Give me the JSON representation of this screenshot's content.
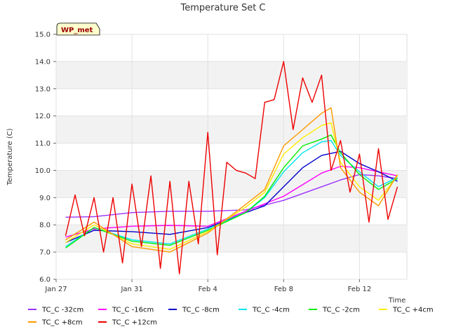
{
  "chart_data": {
    "type": "line",
    "title": "Temperature Set C",
    "xlabel": "Time",
    "ylabel": "Temperature (C)",
    "annotation": "WP_met",
    "xlim": [
      "2024-01-27",
      "2024-02-14T12:00"
    ],
    "ylim": [
      6.0,
      15.0
    ],
    "yticks": [
      "6.0",
      "7.0",
      "8.0",
      "9.0",
      "10.0",
      "11.0",
      "12.0",
      "13.0",
      "14.0",
      "15.0"
    ],
    "xticks": [
      {
        "label": "Jan 27",
        "x": "2024-01-27"
      },
      {
        "label": "Jan 31",
        "x": "2024-01-31"
      },
      {
        "label": "Feb 4",
        "x": "2024-02-04"
      },
      {
        "label": "Feb 8",
        "x": "2024-02-08"
      },
      {
        "label": "Feb 12",
        "x": "2024-02-12"
      }
    ],
    "grid": true,
    "legend_position": "bottom",
    "series": [
      {
        "name": "TC_C -32cm",
        "color": "#9b30ff",
        "x": [
          "2024-01-27T12:00",
          "2024-01-29",
          "2024-01-31",
          "2024-02-02",
          "2024-02-04",
          "2024-02-06",
          "2024-02-08",
          "2024-02-10",
          "2024-02-11",
          "2024-02-12",
          "2024-02-13",
          "2024-02-14"
        ],
        "y": [
          8.28,
          8.3,
          8.45,
          8.5,
          8.5,
          8.55,
          8.9,
          9.4,
          9.65,
          9.85,
          9.8,
          9.7
        ]
      },
      {
        "name": "TC_C -16cm",
        "color": "#ff00ff",
        "x": [
          "2024-01-27T12:00",
          "2024-01-29",
          "2024-01-31",
          "2024-02-02",
          "2024-02-04",
          "2024-02-06",
          "2024-02-08",
          "2024-02-10",
          "2024-02-11",
          "2024-02-12",
          "2024-02-13",
          "2024-02-14"
        ],
        "y": [
          7.55,
          7.85,
          7.95,
          7.98,
          7.95,
          8.5,
          9.05,
          9.9,
          10.15,
          10.1,
          9.95,
          9.8
        ]
      },
      {
        "name": "TC_C -8cm",
        "color": "#0000cc",
        "x": [
          "2024-01-27T12:00",
          "2024-01-29",
          "2024-01-31",
          "2024-02-02",
          "2024-02-04",
          "2024-02-06",
          "2024-02-07",
          "2024-02-08",
          "2024-02-09",
          "2024-02-10",
          "2024-02-11",
          "2024-02-12",
          "2024-02-13",
          "2024-02-14"
        ],
        "y": [
          7.35,
          7.8,
          7.75,
          7.65,
          7.9,
          8.45,
          8.7,
          9.4,
          10.1,
          10.55,
          10.7,
          10.25,
          9.95,
          9.6
        ]
      },
      {
        "name": "TC_C -4cm",
        "color": "#00e5ee",
        "x": [
          "2024-01-27T12:00",
          "2024-01-29",
          "2024-01-31",
          "2024-02-02",
          "2024-02-04",
          "2024-02-06",
          "2024-02-07",
          "2024-02-08",
          "2024-02-09",
          "2024-02-10",
          "2024-02-10T12:00",
          "2024-02-11",
          "2024-02-12",
          "2024-02-13",
          "2024-02-14"
        ],
        "y": [
          7.2,
          7.9,
          7.45,
          7.3,
          7.85,
          8.45,
          9.0,
          9.95,
          10.65,
          11.05,
          11.1,
          10.55,
          9.95,
          9.4,
          9.75
        ]
      },
      {
        "name": "TC_C -2cm",
        "color": "#00ee00",
        "x": [
          "2024-01-27T12:00",
          "2024-01-29",
          "2024-01-31",
          "2024-02-02",
          "2024-02-04",
          "2024-02-06",
          "2024-02-07",
          "2024-02-08",
          "2024-02-09",
          "2024-02-10",
          "2024-02-10T12:00",
          "2024-02-11",
          "2024-02-12",
          "2024-02-13",
          "2024-02-14"
        ],
        "y": [
          7.15,
          7.9,
          7.4,
          7.25,
          7.8,
          8.45,
          9.05,
          10.1,
          10.9,
          11.15,
          11.3,
          10.65,
          9.85,
          9.3,
          9.7
        ]
      },
      {
        "name": "TC_C +4cm",
        "color": "#ffee00",
        "x": [
          "2024-01-27T12:00",
          "2024-01-29",
          "2024-01-31",
          "2024-02-02",
          "2024-02-04",
          "2024-02-06",
          "2024-02-07",
          "2024-02-08",
          "2024-02-09",
          "2024-02-10",
          "2024-02-10T12:00",
          "2024-02-11",
          "2024-02-12",
          "2024-02-13",
          "2024-02-14"
        ],
        "y": [
          7.35,
          8.0,
          7.3,
          7.1,
          7.75,
          8.65,
          9.2,
          10.6,
          11.2,
          11.65,
          11.75,
          10.3,
          9.4,
          8.9,
          9.8
        ]
      },
      {
        "name": "TC_C +8cm",
        "color": "#ff9900",
        "x": [
          "2024-01-27T12:00",
          "2024-01-29",
          "2024-01-31",
          "2024-02-02",
          "2024-02-04",
          "2024-02-06",
          "2024-02-07",
          "2024-02-08",
          "2024-02-09",
          "2024-02-10",
          "2024-02-10T12:00",
          "2024-02-11",
          "2024-02-12",
          "2024-02-13",
          "2024-02-14"
        ],
        "y": [
          7.45,
          8.1,
          7.2,
          7.0,
          7.7,
          8.75,
          9.3,
          10.9,
          11.5,
          12.1,
          12.3,
          10.1,
          9.2,
          8.7,
          9.85
        ]
      },
      {
        "name": "TC_C +12cm",
        "color": "#ee0000",
        "x": [
          "2024-01-27T12:00",
          "2024-01-28",
          "2024-01-28T12:00",
          "2024-01-29",
          "2024-01-29T12:00",
          "2024-01-30",
          "2024-01-30T12:00",
          "2024-01-31",
          "2024-01-31T12:00",
          "2024-02-01",
          "2024-02-01T12:00",
          "2024-02-02",
          "2024-02-02T12:00",
          "2024-02-03",
          "2024-02-03T12:00",
          "2024-02-04",
          "2024-02-04T12:00",
          "2024-02-05",
          "2024-02-05T12:00",
          "2024-02-06",
          "2024-02-06T12:00",
          "2024-02-07",
          "2024-02-07T12:00",
          "2024-02-08",
          "2024-02-08T12:00",
          "2024-02-09",
          "2024-02-09T12:00",
          "2024-02-10",
          "2024-02-10T12:00",
          "2024-02-11",
          "2024-02-11T12:00",
          "2024-02-12",
          "2024-02-12T12:00",
          "2024-02-13",
          "2024-02-13T12:00",
          "2024-02-14"
        ],
        "y": [
          7.6,
          9.1,
          7.6,
          9.0,
          7.0,
          9.0,
          6.6,
          9.5,
          7.2,
          9.8,
          6.4,
          9.6,
          6.2,
          9.6,
          7.3,
          11.4,
          6.9,
          10.3,
          10.0,
          9.9,
          9.7,
          12.5,
          12.6,
          14.0,
          11.5,
          13.4,
          12.5,
          13.5,
          10.0,
          11.1,
          9.2,
          10.6,
          8.1,
          10.8,
          8.2,
          9.4
        ]
      }
    ]
  }
}
